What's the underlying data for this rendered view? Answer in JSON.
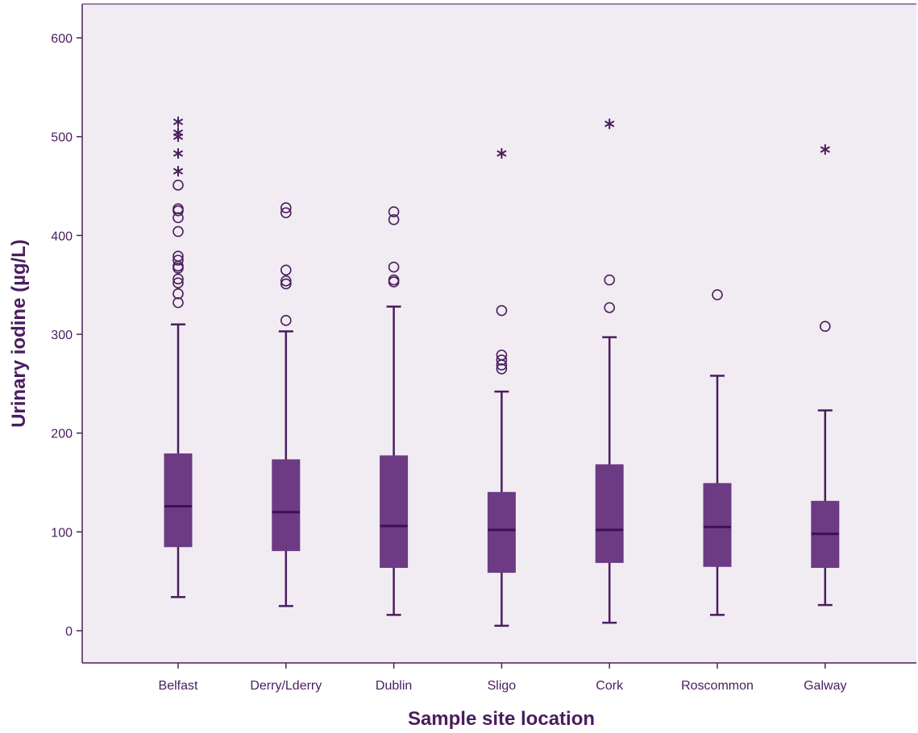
{
  "chart_data": {
    "type": "boxplot",
    "title": "",
    "xlabel": "Sample site location",
    "ylabel": "Urinary iodine (µg/L)",
    "ylim": [
      -33,
      645
    ],
    "yticks": [
      0,
      100,
      200,
      300,
      400,
      500,
      600
    ],
    "grid": false,
    "legend": "none",
    "colors": {
      "box": "#6d3b84",
      "median": "#3d0f55",
      "line": "#4a1d5e",
      "background": "#f1ecf2"
    },
    "categories": [
      "Belfast",
      "Derry/Lderry",
      "Dublin",
      "Sligo",
      "Cork",
      "Roscommon",
      "Galway"
    ],
    "boxes": [
      {
        "min": 34,
        "q1": 85,
        "median": 126,
        "q3": 179,
        "max": 310,
        "outliers": [
          332,
          341,
          352,
          356,
          367,
          369,
          375,
          379,
          404,
          418,
          425,
          427,
          451
        ],
        "extremes": [
          465,
          483,
          500,
          504,
          515
        ]
      },
      {
        "min": 25,
        "q1": 81,
        "median": 120,
        "q3": 173,
        "max": 303,
        "outliers": [
          314,
          351,
          354,
          365,
          423,
          428
        ],
        "extremes": []
      },
      {
        "min": 16,
        "q1": 64,
        "median": 106,
        "q3": 177,
        "max": 328,
        "outliers": [
          353,
          355,
          368,
          416,
          424
        ],
        "extremes": []
      },
      {
        "min": 5,
        "q1": 59,
        "median": 102,
        "q3": 140,
        "max": 242,
        "outliers": [
          265,
          269,
          274,
          279,
          324
        ],
        "extremes": [
          483
        ]
      },
      {
        "min": 8,
        "q1": 69,
        "median": 102,
        "q3": 168,
        "max": 297,
        "outliers": [
          327,
          355
        ],
        "extremes": [
          513
        ]
      },
      {
        "min": 16,
        "q1": 65,
        "median": 105,
        "q3": 149,
        "max": 258,
        "outliers": [
          340
        ],
        "extremes": []
      },
      {
        "min": 26,
        "q1": 64,
        "median": 98,
        "q3": 131,
        "max": 223,
        "outliers": [
          308
        ],
        "extremes": [
          487
        ]
      }
    ]
  }
}
